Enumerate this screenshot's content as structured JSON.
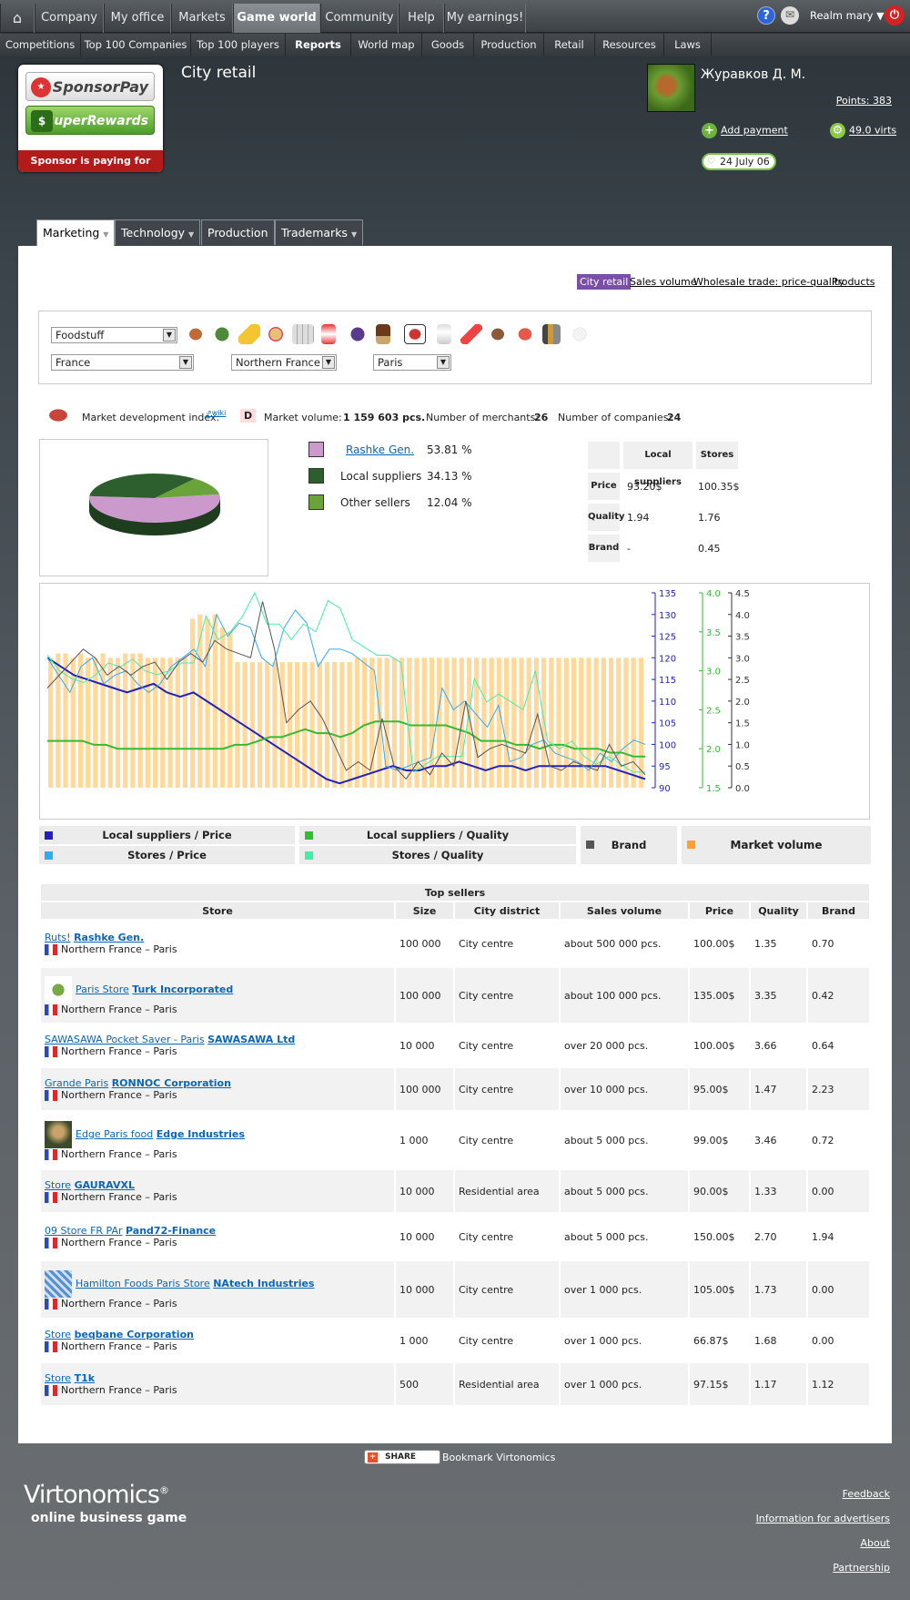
{
  "topnav": {
    "items": [
      "Company",
      "My office",
      "Markets",
      "Game world",
      "Community",
      "Help",
      "My earnings!"
    ],
    "realm": "Realm mary"
  },
  "subnav": {
    "items": [
      "Competitions",
      "Top 100 Companies",
      "Top 100 players",
      "Reports",
      "World map",
      "Goods",
      "Production",
      "Retail",
      "Resources",
      "Laws"
    ]
  },
  "sponsor": {
    "btn1": "SponsorPay",
    "btn2": "$uperRewards",
    "tagline": "Sponsor is paying for you!"
  },
  "header": {
    "title": "City retail",
    "username": "Журавков Д. М.",
    "points": "Points: 383",
    "add_payment": "Add payment",
    "virts": "49.0 virts",
    "date": "24 July 06"
  },
  "tabs": [
    "Marketing",
    "Technology",
    "Production",
    "Trademarks"
  ],
  "topfilters": [
    "City retail",
    "Sales volume",
    "Wholesale trade: price-quality",
    "Products"
  ],
  "filters": {
    "product": "Foodstuff",
    "country": "France",
    "region": "Northern France",
    "city": "Paris"
  },
  "stats": {
    "mdi_label": "Market development index:",
    "wiki": "wiki",
    "mdi_value": "D",
    "volume_label": "Market volume:",
    "volume_value": "1 159 603 pcs.",
    "merchants_label": "Number of merchants:",
    "merchants_value": "26",
    "companies_label": "Number of companies:",
    "companies_value": "24"
  },
  "share_legend": [
    {
      "name": "Rashke Gen.",
      "pct": "53.81 %",
      "color": "#cc99cc"
    },
    {
      "name": "Local suppliers",
      "pct": "34.13 %",
      "color": "#2d5e2d"
    },
    {
      "name": "Other sellers",
      "pct": "12.04 %",
      "color": "#6aa33a"
    }
  ],
  "compare": {
    "h_local": "Local suppliers",
    "h_stores": "Stores",
    "r_price": "Price",
    "r_quality": "Quality",
    "r_brand": "Brand",
    "price_local": "93.20$",
    "price_stores": "100.35$",
    "quality_local": "1.94",
    "quality_stores": "1.76",
    "brand_local": "-",
    "brand_stores": "0.45"
  },
  "chart_legend": {
    "lp": "Local suppliers / Price",
    "sp": "Stores / Price",
    "lq": "Local suppliers / Quality",
    "sq": "Stores / Quality",
    "brand": "Brand",
    "mv": "Market volume"
  },
  "chart_data": {
    "type": "line",
    "axes": {
      "price": {
        "ticks": [
          "135",
          "130",
          "125",
          "120",
          "115",
          "110",
          "105",
          "100",
          "95",
          "90"
        ],
        "range": [
          90,
          135
        ]
      },
      "quality": {
        "ticks": [
          "4.0",
          "3.5",
          "3.0",
          "2.5",
          "2.0",
          "1.5"
        ],
        "range": [
          1.5,
          4.0
        ]
      },
      "brand": {
        "ticks": [
          "4.5",
          "4.0",
          "3.5",
          "3.0",
          "2.5",
          "2.0",
          "1.5",
          "1.0",
          "0.5",
          "0.0"
        ],
        "range": [
          0,
          4.5
        ]
      }
    },
    "series": [
      {
        "name": "Local suppliers / Price",
        "axis": "price",
        "color": "#2222bb",
        "values": [
          120,
          118,
          116,
          115,
          114,
          113,
          112,
          113,
          114,
          112,
          111,
          112,
          110,
          108,
          106,
          104,
          102,
          100,
          98,
          96,
          94,
          92,
          91,
          92,
          93,
          94,
          95,
          94,
          94,
          95,
          95,
          96,
          95,
          94,
          95,
          95,
          94,
          95,
          95,
          95,
          95,
          95,
          95,
          94,
          93,
          92
        ]
      },
      {
        "name": "Stores / Price",
        "axis": "price",
        "color": "#33aaee",
        "values": [
          120,
          116,
          112,
          118,
          120,
          114,
          116,
          117,
          114,
          112,
          114,
          118,
          120,
          122,
          118,
          130,
          125,
          128,
          127,
          120,
          118,
          127,
          131,
          128,
          118,
          122,
          122,
          121,
          119,
          117,
          95,
          94,
          95,
          96,
          97,
          113,
          108,
          110,
          107,
          104,
          109,
          96,
          97,
          100,
          101,
          98,
          97,
          96,
          94,
          98,
          96,
          99,
          101,
          100
        ]
      },
      {
        "name": "Local suppliers / Quality",
        "axis": "quality",
        "color": "#33bb33",
        "values": [
          2.1,
          2.1,
          2.1,
          2.1,
          2.05,
          2.05,
          2.0,
          2.0,
          2.0,
          2.0,
          2.0,
          2.0,
          2.0,
          2.0,
          2.0,
          2.0,
          2.05,
          2.05,
          2.1,
          2.15,
          2.15,
          2.2,
          2.25,
          2.2,
          2.2,
          2.15,
          2.2,
          2.3,
          2.35,
          2.35,
          2.35,
          2.3,
          2.3,
          2.3,
          2.3,
          2.25,
          2.2,
          2.1,
          2.1,
          2.1,
          2.05,
          2.05,
          2.0,
          2.05,
          2.05,
          2.0,
          2.0,
          2.0,
          1.95,
          1.95,
          1.9,
          1.9
        ]
      },
      {
        "name": "Stores / Quality",
        "axis": "quality",
        "color": "#44eeaa",
        "values": [
          3.2,
          3.0,
          2.9,
          2.85,
          2.95,
          3.1,
          3.05,
          3.15,
          3.0,
          2.95,
          3.0,
          3.1,
          3.1,
          3.7,
          3.4,
          3.5,
          3.7,
          4.0,
          3.6,
          3.6,
          3.4,
          3.6,
          3.5,
          3.9,
          3.8,
          3.4,
          3.3,
          3.2,
          3.2,
          3.1,
          1.7,
          1.8,
          1.9,
          1.9,
          1.9,
          2.9,
          2.6,
          2.7,
          2.6,
          2.5,
          3.0,
          2.1,
          2.0,
          2.1,
          1.9,
          1.8,
          1.9,
          1.8,
          1.7,
          1.7
        ]
      },
      {
        "name": "Brand",
        "axis": "brand",
        "color": "#555555",
        "values": [
          2.3,
          2.6,
          2.9,
          3.2,
          3.0,
          2.6,
          2.8,
          2.6,
          2.8,
          2.9,
          2.5,
          2.9,
          3.1,
          2.9,
          3.4,
          3.2,
          3.1,
          3.0,
          4.3,
          3.2,
          1.5,
          1.8,
          2.0,
          1.6,
          1.0,
          0.4,
          0.6,
          0.4,
          1.6,
          0.5,
          0.2,
          0.6,
          0.3,
          0.8,
          0.5,
          2.0,
          0.7,
          0.9,
          1.0,
          0.9,
          0.8,
          1.7,
          0.5,
          0.4,
          0.6,
          0.5,
          0.4,
          1.0,
          0.5,
          0.6,
          0.3
        ]
      },
      {
        "name": "Market volume",
        "axis": "price",
        "color": "#ffd89a",
        "type": "bar",
        "values": [
          120,
          121,
          121,
          120,
          121,
          120,
          120,
          121,
          120,
          120,
          121,
          121,
          121,
          120,
          120,
          120,
          120,
          120,
          120,
          129,
          130,
          129,
          130,
          127,
          126,
          119,
          119,
          119,
          119,
          119,
          119,
          119,
          119,
          119,
          119,
          119,
          119,
          119,
          119,
          119,
          119,
          120,
          120,
          120,
          120,
          120,
          120,
          120,
          120,
          120,
          120,
          120,
          120,
          120,
          120,
          120,
          120,
          120,
          120,
          120,
          120,
          120,
          120,
          120,
          120,
          120,
          120,
          120,
          120,
          120,
          120,
          120,
          120,
          120,
          120,
          120,
          120,
          120,
          120,
          120
        ]
      }
    ],
    "grid": false
  },
  "pie_data": {
    "type": "pie",
    "slices": [
      53.81,
      34.13,
      12.04
    ]
  },
  "table": {
    "caption": "Top sellers",
    "headers": [
      "Store",
      "Size",
      "City district",
      "Sales volume",
      "Price",
      "Quality",
      "Brand"
    ],
    "rows": [
      {
        "store": "Ruts!",
        "company": "Rashke Gen.",
        "loc": "Northern France – Paris",
        "size": "100 000",
        "district": "City centre",
        "sales": "about 500 000 pcs.",
        "price": "100.00$",
        "quality": "1.35",
        "brand": "0.70",
        "logo": ""
      },
      {
        "store": "Paris Store",
        "company": "Turk Incorporated",
        "loc": "Northern France – Paris",
        "size": "100 000",
        "district": "City centre",
        "sales": "about 100 000 pcs.",
        "price": "135.00$",
        "quality": "3.35",
        "brand": "0.42",
        "logo": "gear"
      },
      {
        "store": "SAWASAWA Pocket Saver - Paris",
        "company": "SAWASAWA Ltd",
        "loc": "Northern France – Paris",
        "size": "10 000",
        "district": "City centre",
        "sales": "over 20 000 pcs.",
        "price": "100.00$",
        "quality": "3.66",
        "brand": "0.64",
        "logo": ""
      },
      {
        "store": "Grande Paris",
        "company": "RONNOC Corporation",
        "loc": "Northern France – Paris",
        "size": "100 000",
        "district": "City centre",
        "sales": "over 10 000 pcs.",
        "price": "95.00$",
        "quality": "1.47",
        "brand": "2.23",
        "logo": ""
      },
      {
        "store": "Edge Paris food",
        "company": "Edge Industries",
        "loc": "Northern France – Paris",
        "size": "1 000",
        "district": "City centre",
        "sales": "about 5 000 pcs.",
        "price": "99.00$",
        "quality": "3.46",
        "brand": "0.72",
        "logo": "photo"
      },
      {
        "store": "Store",
        "company": "GAURAVXL",
        "loc": "Northern France – Paris",
        "size": "10 000",
        "district": "Residential area",
        "sales": "about 5 000 pcs.",
        "price": "90.00$",
        "quality": "1.33",
        "brand": "0.00",
        "logo": ""
      },
      {
        "store": "09 Store FR PAr",
        "company": "Pand72-Finance",
        "loc": "Northern France – Paris",
        "size": "10 000",
        "district": "City centre",
        "sales": "about 5 000 pcs.",
        "price": "150.00$",
        "quality": "2.70",
        "brand": "1.94",
        "logo": ""
      },
      {
        "store": "Hamilton Foods Paris Store",
        "company": "NAtech Industries",
        "loc": "Northern France – Paris",
        "size": "10 000",
        "district": "City centre",
        "sales": "over 1 000 pcs.",
        "price": "105.00$",
        "quality": "1.73",
        "brand": "0.00",
        "logo": "pattern"
      },
      {
        "store": "Store",
        "company": "beqbane Corporation",
        "loc": "Northern France – Paris",
        "size": "1 000",
        "district": "City centre",
        "sales": "over 1 000 pcs.",
        "price": "66.87$",
        "quality": "1.68",
        "brand": "0.00",
        "logo": ""
      },
      {
        "store": "Store",
        "company": "T1k",
        "loc": "Northern France – Paris",
        "size": "500",
        "district": "Residential area",
        "sales": "over 1 000 pcs.",
        "price": "97.15$",
        "quality": "1.17",
        "brand": "1.12",
        "logo": ""
      }
    ]
  },
  "footer": {
    "share": "SHARE",
    "bookmark": "Bookmark Virtonomics",
    "brand": "Virtonomics",
    "tagline": "online business game",
    "links": [
      "Feedback",
      "Information for advertisers",
      "About",
      "Partnership"
    ]
  },
  "colors": {
    "accent_purple": "#7b4fa8",
    "link": "#0a66b8",
    "green": "#7cc241"
  }
}
